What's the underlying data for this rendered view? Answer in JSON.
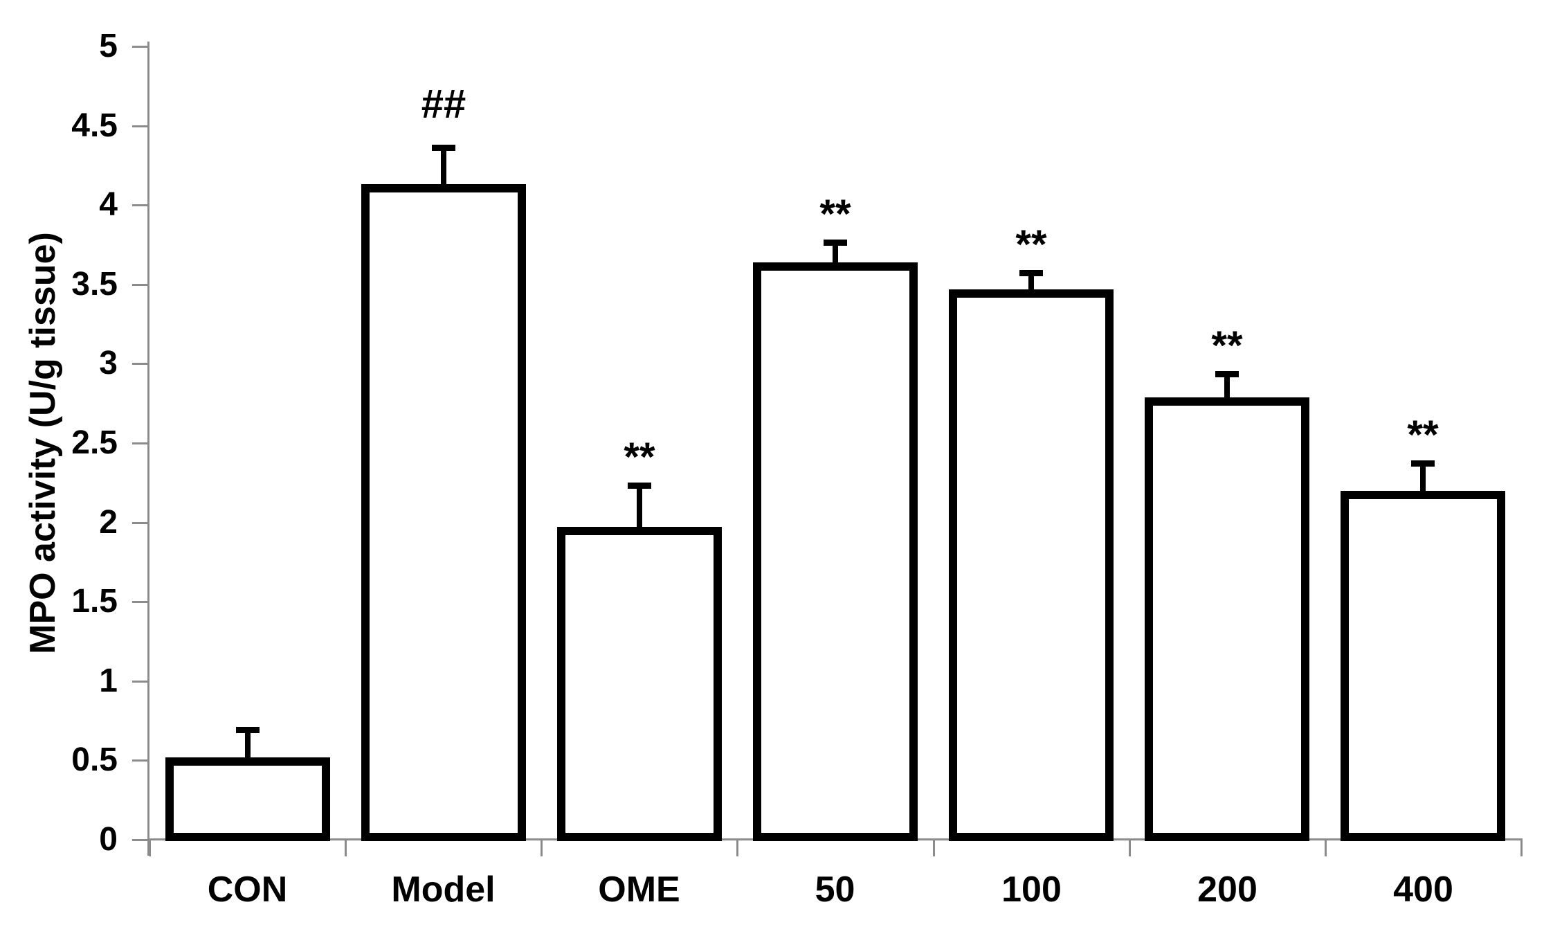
{
  "figure": {
    "background": "#ffffff",
    "text_color": "#000000",
    "axis_color": "#8c8c8c"
  },
  "chart_data": {
    "type": "bar",
    "title": "",
    "xlabel": "",
    "ylabel": "MPO activity (U/g tissue)",
    "categories": [
      "CON",
      "Model",
      "OME",
      "50",
      "100",
      "200",
      "400"
    ],
    "values": [
      0.52,
      4.13,
      1.97,
      3.64,
      3.47,
      2.79,
      2.2
    ],
    "error_upper": [
      0.17,
      0.23,
      0.26,
      0.12,
      0.1,
      0.14,
      0.17
    ],
    "annotations": [
      "",
      "##",
      "**",
      "**",
      "**",
      "**",
      "**"
    ],
    "ylim": [
      0,
      5
    ],
    "ytick_step": 0.5,
    "ytick_labels": [
      "0",
      "0.5",
      "1",
      "1.5",
      "2",
      "2.5",
      "3",
      "3.5",
      "4",
      "4.5",
      "5"
    ],
    "grid": false,
    "legend": null,
    "bar_fill": "#ffffff",
    "bar_border_color": "#000000",
    "axis_color": "#8c8c8c"
  }
}
